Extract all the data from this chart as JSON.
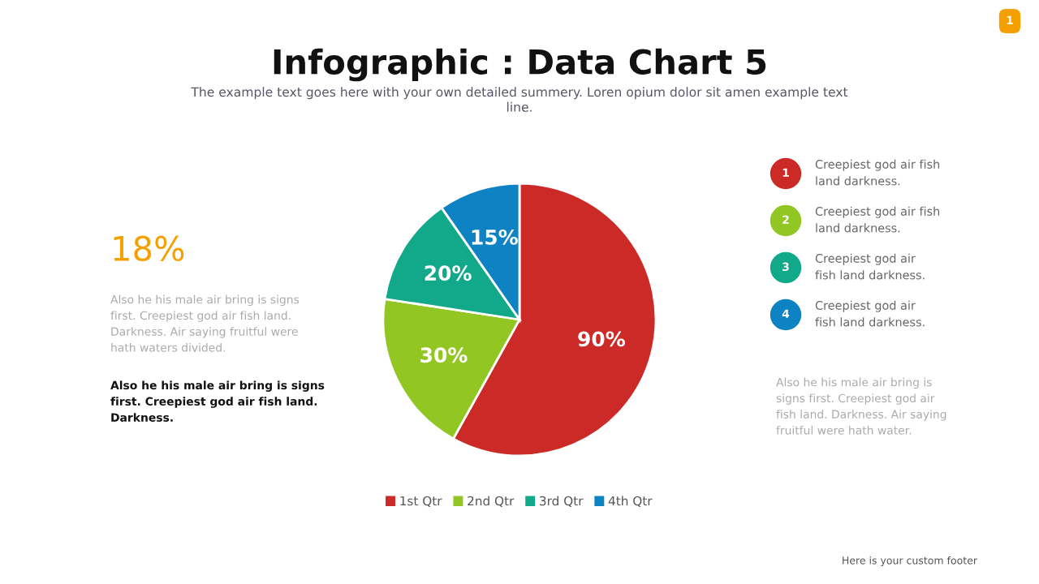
{
  "chart_data": {
    "type": "pie",
    "title": "Infographic : Data Chart 5",
    "subtitle": "The example text goes here with your own detailed summery. Loren opium dolor sit amen example text\nline.",
    "categories": [
      "1st Qtr",
      "2nd Qtr",
      "3rd Qtr",
      "4th Qtr"
    ],
    "values": [
      90,
      30,
      20,
      15
    ],
    "value_labels": [
      "90%",
      "30%",
      "20%",
      "15%"
    ],
    "colors": [
      "#cc2a27",
      "#92c723",
      "#12a88a",
      "#0e83c3"
    ],
    "legend": "bottom",
    "annotations": [
      "18%",
      "Also he his male air bring is signs\nfirst. Creepiest god air fish land.\nDarkness. Air saying fruitful were\nhath waters divided.",
      "Also he his male air bring is signs\nfirst. Creepiest god air fish land.\nDarkness.",
      "1",
      "Creepiest god air fish\nland darkness.",
      "2",
      "Creepiest god air fish\nland darkness.",
      "3",
      "Creepiest god air\nfish land darkness.",
      "4",
      "Creepiest god air\nfish land darkness.",
      "Also he his male air bring is\nsigns first. Creepiest god air\nfish land. Darkness. Air saying\nfruitful were hath water.",
      "Here is your custom footer",
      "1"
    ]
  }
}
